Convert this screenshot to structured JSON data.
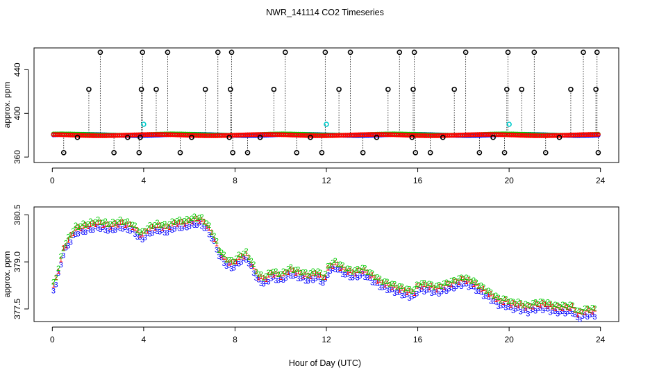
{
  "figure": {
    "title": "NWR_141114  CO2 Timeseries",
    "xlabel": "Hour of Day (UTC)"
  },
  "colors": {
    "black": "#000000",
    "blue": "#0000ff",
    "green": "#00cc00",
    "red": "#ff0000",
    "cyan": "#00cccc"
  },
  "chart_data": [
    {
      "type": "scatter",
      "panel": "top",
      "ylabel": "approx. ppm",
      "xlim": [
        -0.8,
        24.8
      ],
      "ylim": [
        355,
        460
      ],
      "xticks": [
        0,
        4,
        8,
        12,
        16,
        20,
        24
      ],
      "yticks": [
        360,
        400,
        440
      ],
      "grid": false,
      "series": [
        {
          "name": "1",
          "color": "blue",
          "marker": "o",
          "x_start": 0.05,
          "x_end": 23.9,
          "count": 290,
          "value_approx": 380.3
        },
        {
          "name": "2",
          "color": "green",
          "marker": "o",
          "x_start": 0.05,
          "x_end": 23.9,
          "count": 290,
          "value_approx": 380.6
        },
        {
          "name": "3",
          "color": "red",
          "marker": "o",
          "x_start": 0.05,
          "x_end": 23.9,
          "count": 290,
          "value_approx": 380.1
        }
      ],
      "flag_points": {
        "color": "black",
        "marker": "o",
        "x": [
          0.5,
          1.1,
          1.6,
          2.1,
          2.7,
          3.3,
          3.8,
          3.85,
          3.9,
          3.95,
          4.55,
          5.05,
          5.6,
          6.1,
          6.7,
          7.25,
          7.75,
          7.8,
          7.85,
          7.9,
          8.55,
          9.1,
          9.7,
          10.2,
          10.7,
          11.3,
          11.8,
          11.95,
          12.55,
          13.05,
          13.6,
          14.2,
          14.7,
          15.2,
          15.75,
          15.8,
          15.85,
          15.9,
          16.55,
          17.1,
          17.6,
          18.1,
          18.7,
          19.3,
          19.8,
          19.9,
          19.95,
          20.55,
          21.1,
          21.6,
          22.2,
          22.7,
          23.25,
          23.8,
          23.85,
          23.9
        ],
        "y": [
          364,
          378,
          422,
          456,
          364,
          378,
          364,
          378,
          422,
          456,
          422,
          456,
          364,
          378,
          422,
          456,
          378,
          422,
          456,
          364,
          364,
          378,
          422,
          456,
          364,
          378,
          364,
          456,
          422,
          456,
          364,
          378,
          422,
          456,
          378,
          422,
          456,
          364,
          364,
          378,
          422,
          456,
          364,
          378,
          364,
          422,
          456,
          422,
          456,
          364,
          378,
          422,
          456,
          422,
          456,
          364
        ],
        "baseline": 380
      },
      "cyan_points": {
        "color": "cyan",
        "marker": "o",
        "x": [
          4.0,
          12.0,
          20.0
        ],
        "y": [
          390,
          390,
          390
        ]
      }
    },
    {
      "type": "scatter",
      "panel": "bottom",
      "ylabel": "approx. ppm",
      "xlim": [
        -0.8,
        24.8
      ],
      "ylim": [
        377.1,
        380.75
      ],
      "xticks": [
        0,
        4,
        8,
        12,
        16,
        20,
        24
      ],
      "yticks": [
        377.5,
        379.0,
        380.5
      ],
      "ytick_labels": [
        "377.5",
        "379.0",
        "380.5"
      ],
      "grid": false,
      "marker_style": "series number drawn as the point symbol",
      "series": [
        {
          "name": "1",
          "color": "red",
          "offset": 0.16
        },
        {
          "name": "2",
          "color": "green",
          "offset": 0.22
        },
        {
          "name": "3",
          "color": "blue",
          "offset": 0.0
        }
      ],
      "base_curve": {
        "x": [
          0.0,
          0.2,
          0.5,
          1.0,
          1.5,
          2.0,
          2.5,
          3.0,
          3.5,
          3.9,
          4.2,
          4.6,
          5.0,
          5.4,
          5.8,
          6.2,
          6.5,
          6.8,
          7.1,
          7.3,
          7.6,
          7.9,
          8.2,
          8.5,
          8.8,
          9.0,
          9.3,
          9.6,
          10.0,
          10.4,
          10.8,
          11.2,
          11.6,
          11.9,
          12.1,
          12.4,
          12.8,
          13.2,
          13.6,
          14.0,
          14.4,
          14.8,
          15.2,
          15.6,
          15.85,
          16.0,
          16.4,
          16.8,
          17.2,
          17.6,
          18.0,
          18.4,
          18.8,
          19.2,
          19.6,
          19.9,
          20.1,
          20.4,
          20.8,
          21.2,
          21.6,
          22.0,
          22.4,
          22.8,
          23.0,
          23.4,
          23.8
        ],
        "y": [
          378.0,
          378.4,
          379.3,
          379.9,
          380.0,
          380.1,
          380.0,
          380.1,
          380.0,
          379.7,
          379.9,
          380.0,
          379.95,
          380.1,
          380.1,
          380.2,
          380.2,
          380.0,
          379.6,
          379.2,
          378.9,
          378.8,
          379.0,
          379.1,
          378.7,
          378.4,
          378.3,
          378.5,
          378.4,
          378.6,
          378.5,
          378.4,
          378.5,
          378.3,
          378.7,
          378.8,
          378.6,
          378.5,
          378.6,
          378.4,
          378.2,
          378.1,
          378.0,
          377.9,
          377.9,
          378.1,
          378.1,
          378.0,
          378.1,
          378.2,
          378.3,
          378.2,
          378.0,
          377.8,
          377.6,
          377.6,
          377.5,
          377.5,
          377.4,
          377.5,
          377.5,
          377.4,
          377.4,
          377.4,
          377.2,
          377.3,
          377.3
        ]
      }
    }
  ]
}
